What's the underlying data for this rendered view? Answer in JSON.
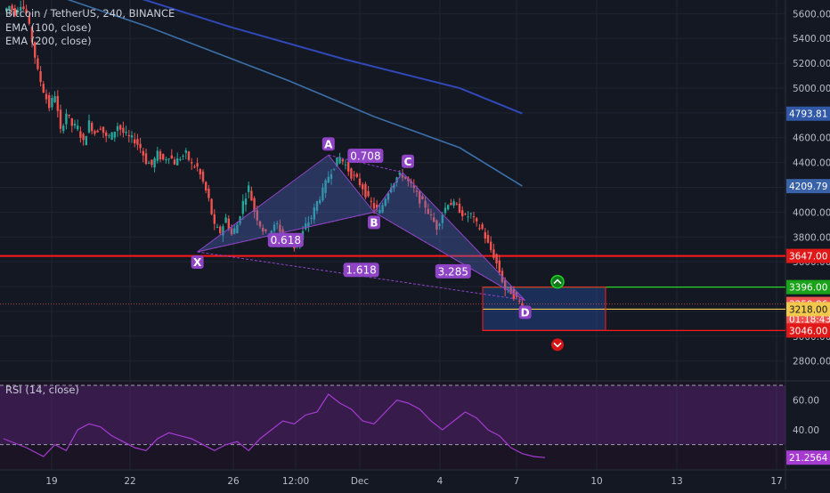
{
  "legend": {
    "title": "Bitcoin / TetherUS, 240, BINANCE",
    "ema100": "EMA (100, close)",
    "ema200": "EMA (200, close)",
    "rsi": "RSI (14, close)"
  },
  "colors": {
    "background": "#141823",
    "up": "#26a69a",
    "down": "#ef5350",
    "ema100": "#3b6fa8",
    "ema200": "#3048b8",
    "pattern": "#8e44c4",
    "resistance": "#ff1a1a",
    "target_top": "#26d426",
    "target_mid": "#f2c94c",
    "stop": "#ff1a1a",
    "rsi": "#a53bd1"
  },
  "chart_data": [
    {
      "type": "candlestick",
      "title": "Bitcoin / TetherUS, 240, BINANCE",
      "x_ticks": [
        "19",
        "22",
        "26",
        "12:00",
        "Dec",
        "4",
        "7",
        "10",
        "13",
        "17"
      ],
      "y_ticks": [
        5600,
        5400,
        5200,
        5000,
        4800,
        4600,
        4400,
        4200,
        4000,
        3800,
        3600,
        3400,
        3200,
        3000,
        2800
      ],
      "ylim": [
        2640,
        5710
      ],
      "close_path": [
        [
          0,
          5620
        ],
        [
          2,
          5660
        ],
        [
          4,
          5610
        ],
        [
          6,
          5680
        ],
        [
          8,
          5600
        ],
        [
          10,
          5380
        ],
        [
          12,
          5130
        ],
        [
          14,
          4980
        ],
        [
          16,
          4850
        ],
        [
          18,
          4950
        ],
        [
          20,
          4650
        ],
        [
          22,
          4800
        ],
        [
          24,
          4700
        ],
        [
          26,
          4680
        ],
        [
          28,
          4560
        ],
        [
          30,
          4720
        ],
        [
          32,
          4640
        ],
        [
          34,
          4690
        ],
        [
          36,
          4600
        ],
        [
          38,
          4620
        ],
        [
          40,
          4700
        ],
        [
          42,
          4640
        ],
        [
          44,
          4600
        ],
        [
          46,
          4580
        ],
        [
          48,
          4520
        ],
        [
          50,
          4410
        ],
        [
          52,
          4380
        ],
        [
          54,
          4470
        ],
        [
          56,
          4420
        ],
        [
          58,
          4460
        ],
        [
          60,
          4400
        ],
        [
          62,
          4440
        ],
        [
          64,
          4470
        ],
        [
          66,
          4380
        ],
        [
          68,
          4360
        ],
        [
          70,
          4240
        ],
        [
          72,
          4100
        ],
        [
          74,
          3880
        ],
        [
          76,
          3840
        ],
        [
          78,
          3950
        ],
        [
          80,
          3820
        ],
        [
          82,
          3900
        ],
        [
          84,
          4080
        ],
        [
          86,
          4200
        ],
        [
          88,
          4010
        ],
        [
          90,
          3900
        ],
        [
          92,
          3820
        ],
        [
          94,
          3860
        ],
        [
          96,
          3900
        ],
        [
          98,
          3810
        ],
        [
          100,
          3770
        ],
        [
          102,
          3720
        ],
        [
          104,
          3780
        ],
        [
          106,
          3890
        ],
        [
          108,
          3960
        ],
        [
          110,
          4080
        ],
        [
          112,
          4170
        ],
        [
          114,
          4290
        ],
        [
          116,
          4380
        ],
        [
          118,
          4440
        ],
        [
          120,
          4380
        ],
        [
          122,
          4300
        ],
        [
          124,
          4260
        ],
        [
          126,
          4200
        ],
        [
          128,
          4100
        ],
        [
          130,
          4040
        ],
        [
          132,
          4000
        ],
        [
          134,
          4120
        ],
        [
          136,
          4220
        ],
        [
          138,
          4280
        ],
        [
          140,
          4300
        ],
        [
          142,
          4240
        ],
        [
          144,
          4180
        ],
        [
          146,
          4100
        ],
        [
          148,
          4050
        ],
        [
          150,
          3960
        ],
        [
          152,
          3880
        ],
        [
          154,
          3990
        ],
        [
          156,
          4080
        ],
        [
          158,
          4060
        ],
        [
          160,
          4020
        ],
        [
          162,
          3960
        ],
        [
          164,
          3980
        ],
        [
          166,
          3900
        ],
        [
          168,
          3860
        ],
        [
          170,
          3740
        ],
        [
          172,
          3650
        ],
        [
          174,
          3520
        ],
        [
          176,
          3380
        ],
        [
          178,
          3360
        ],
        [
          180,
          3300
        ],
        [
          182,
          3260
        ]
      ],
      "ema100": [
        [
          0,
          5890
        ],
        [
          50,
          5500
        ],
        [
          100,
          5060
        ],
        [
          130,
          4770
        ],
        [
          160,
          4520
        ],
        [
          182,
          4210
        ]
      ],
      "ema200": [
        [
          40,
          5780
        ],
        [
          80,
          5490
        ],
        [
          120,
          5230
        ],
        [
          160,
          5000
        ],
        [
          182,
          4795
        ]
      ],
      "harmonic_pattern": {
        "X": [
          3680,
          68
        ],
        "A": [
          4460,
          114
        ],
        "B": [
          4000,
          130
        ],
        "C": [
          4320,
          140
        ],
        "D": [
          3290,
          183
        ],
        "labels": [
          "X",
          "A",
          "B",
          "C",
          "D"
        ],
        "ratios": [
          "0.618",
          "0.708",
          "3.285",
          "1.618"
        ]
      },
      "price_tags": [
        {
          "value": 4793.81,
          "label": "4793.81"
        },
        {
          "value": 4209.79,
          "label": "4209.79"
        },
        {
          "value": 3647.0,
          "label": "3647.00"
        },
        {
          "value": 3396.0,
          "label": "3396.00"
        },
        {
          "value": 3259.86,
          "label": "3259.86"
        },
        {
          "value": 3235.0,
          "label": "01:18:43"
        },
        {
          "value": 3218.0,
          "label": "3218.00"
        },
        {
          "value": 3046.0,
          "label": "3046.00"
        }
      ],
      "levels": {
        "resistance": 3647.0,
        "target_top": 3396.0,
        "entry": 3218.0,
        "stop": 3046.0
      }
    },
    {
      "type": "line",
      "title": "RSI (14, close)",
      "y_ticks": [
        60.0,
        40.0,
        20.0
      ],
      "ylim": [
        13,
        73
      ],
      "bands": [
        70,
        30
      ],
      "current": "21.2564",
      "values": [
        [
          0,
          34
        ],
        [
          8,
          28
        ],
        [
          14,
          22
        ],
        [
          18,
          30
        ],
        [
          22,
          26
        ],
        [
          26,
          40
        ],
        [
          30,
          44
        ],
        [
          34,
          42
        ],
        [
          38,
          36
        ],
        [
          42,
          32
        ],
        [
          46,
          28
        ],
        [
          50,
          26
        ],
        [
          54,
          34
        ],
        [
          58,
          38
        ],
        [
          62,
          36
        ],
        [
          66,
          34
        ],
        [
          70,
          30
        ],
        [
          74,
          26
        ],
        [
          78,
          30
        ],
        [
          82,
          32
        ],
        [
          86,
          26
        ],
        [
          90,
          34
        ],
        [
          94,
          40
        ],
        [
          98,
          46
        ],
        [
          102,
          44
        ],
        [
          106,
          50
        ],
        [
          110,
          52
        ],
        [
          114,
          64
        ],
        [
          118,
          58
        ],
        [
          122,
          54
        ],
        [
          126,
          46
        ],
        [
          130,
          44
        ],
        [
          134,
          52
        ],
        [
          138,
          60
        ],
        [
          142,
          58
        ],
        [
          146,
          54
        ],
        [
          150,
          46
        ],
        [
          154,
          40
        ],
        [
          158,
          46
        ],
        [
          162,
          52
        ],
        [
          166,
          48
        ],
        [
          170,
          40
        ],
        [
          174,
          36
        ],
        [
          178,
          28
        ],
        [
          182,
          24
        ],
        [
          186,
          22
        ],
        [
          190,
          21.3
        ]
      ]
    }
  ]
}
